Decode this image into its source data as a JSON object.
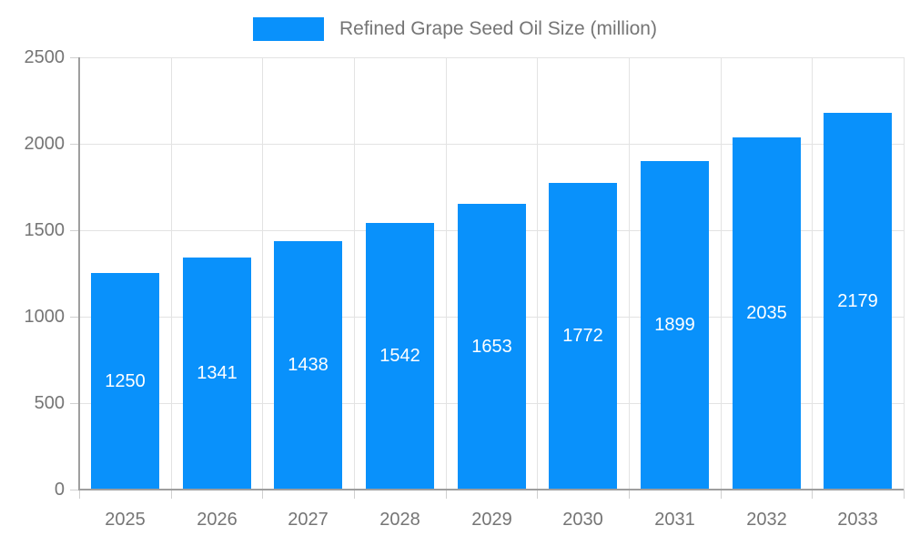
{
  "chart": {
    "legend": {
      "label": "Refined Grape Seed Oil Size (million)"
    },
    "colors": {
      "bar": "#0991FB",
      "grid": "#e3e3e3",
      "axis": "#9e9e9e",
      "tick": "#d0d0d0",
      "tick_label": "#757575",
      "legend_text": "#757575",
      "value_label": "#ffffff",
      "background": "#ffffff"
    }
  },
  "chart_data": {
    "type": "bar",
    "title": "Refined Grape Seed Oil Size (million)",
    "series_name": "Refined Grape Seed Oil Size (million)",
    "categories": [
      "2025",
      "2026",
      "2027",
      "2028",
      "2029",
      "2030",
      "2031",
      "2032",
      "2033"
    ],
    "values": [
      1250,
      1341,
      1438,
      1542,
      1653,
      1772,
      1899,
      2035,
      2179
    ],
    "xlabel": "",
    "ylabel": "",
    "ylim": [
      0,
      2500
    ],
    "yticks": [
      0,
      500,
      1000,
      1500,
      2000,
      2500
    ],
    "grid": true,
    "legend_position": "top",
    "value_label_position": "inside-center"
  }
}
